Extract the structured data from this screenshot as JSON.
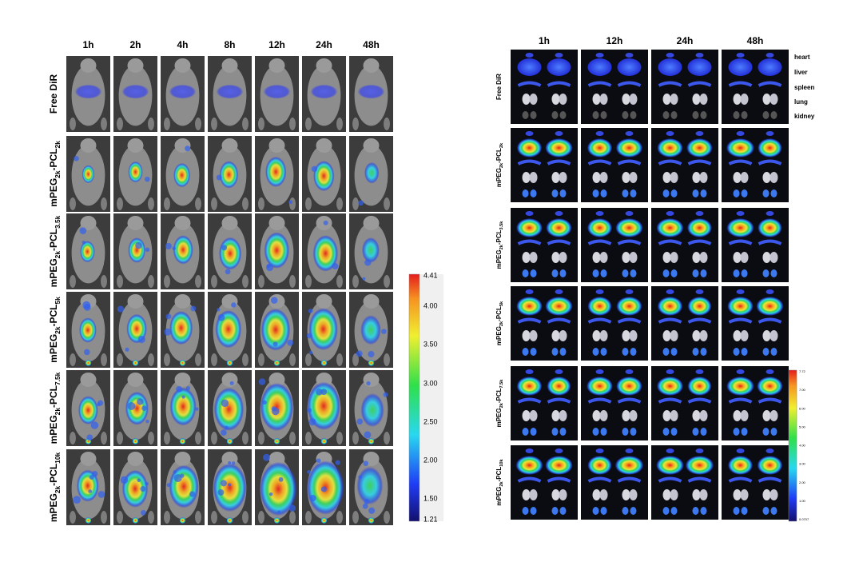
{
  "left_panel": {
    "columns": [
      "1h",
      "2h",
      "4h",
      "8h",
      "12h",
      "24h",
      "48h"
    ],
    "rows": [
      [
        "Free DiR"
      ],
      [
        "mPEG",
        "2k",
        "-PCL",
        "2k"
      ],
      [
        "mPEG",
        "2k",
        "-PCL",
        "3.5k"
      ],
      [
        "mPEG",
        "2k",
        "-PCL",
        "5k"
      ],
      [
        "mPEG",
        "2k",
        "-PCL",
        "7.5k"
      ],
      [
        "mPEG",
        "2k",
        "-PCL",
        "10k"
      ]
    ],
    "colorbar": {
      "labels": [
        "4.41",
        "4.00",
        "3.50",
        "3.00",
        "2.50",
        "2.00",
        "1.50",
        "1.21"
      ]
    }
  },
  "right_panel": {
    "columns": [
      "1h",
      "12h",
      "24h",
      "48h"
    ],
    "organs": [
      "heart",
      "liver",
      "spleen",
      "lung",
      "kidney"
    ],
    "rows": [
      [
        "Free DiR"
      ],
      [
        "mPEG",
        "2k",
        "-PCL",
        "2k"
      ],
      [
        "mPEG",
        "2k",
        "-PCL",
        "3.5k"
      ],
      [
        "mPEG",
        "2k",
        "-PCL",
        "5k"
      ],
      [
        "mPEG",
        "2k",
        "-PCL",
        "7.5k"
      ],
      [
        "mPEG",
        "2k",
        "-PCL",
        "10k"
      ]
    ],
    "colorbar": {
      "labels": [
        "7.72",
        "7.00",
        "6.00",
        "5.00",
        "4.00",
        "3.00",
        "2.00",
        "1.00",
        "0.0707"
      ]
    }
  }
}
